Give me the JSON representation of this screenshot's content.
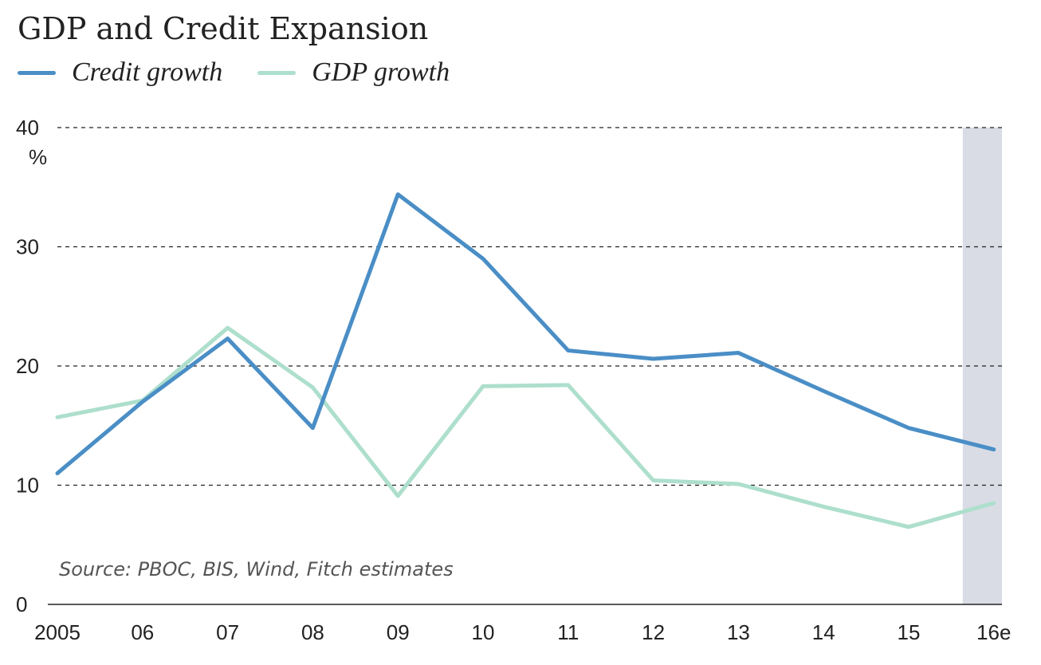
{
  "chart_data": {
    "type": "line",
    "title": "GDP and Credit Expansion",
    "ylabel": "%",
    "source": "Source: PBOC, BIS, Wind, Fitch estimates",
    "categories": [
      "2005",
      "06",
      "07",
      "08",
      "09",
      "10",
      "11",
      "12",
      "13",
      "14",
      "15",
      "16e"
    ],
    "ylim": [
      0,
      40
    ],
    "yticks": [
      "0",
      "10",
      "20",
      "30",
      "40"
    ],
    "grid": true,
    "legend": "top-left",
    "shaded_category": "16e",
    "colors": {
      "shade": "#d9dce5",
      "grid": "#222222"
    },
    "series": [
      {
        "name": "Credit growth",
        "color": "#4a8ec6",
        "values": [
          11.0,
          17.0,
          22.3,
          14.8,
          34.4,
          29.0,
          21.3,
          20.6,
          21.1,
          17.9,
          14.8,
          13.0
        ]
      },
      {
        "name": "GDP growth",
        "color": "#addfcc",
        "values": [
          15.7,
          17.1,
          23.2,
          18.2,
          9.1,
          18.3,
          18.4,
          10.4,
          10.1,
          8.2,
          6.5,
          8.5
        ]
      }
    ]
  }
}
